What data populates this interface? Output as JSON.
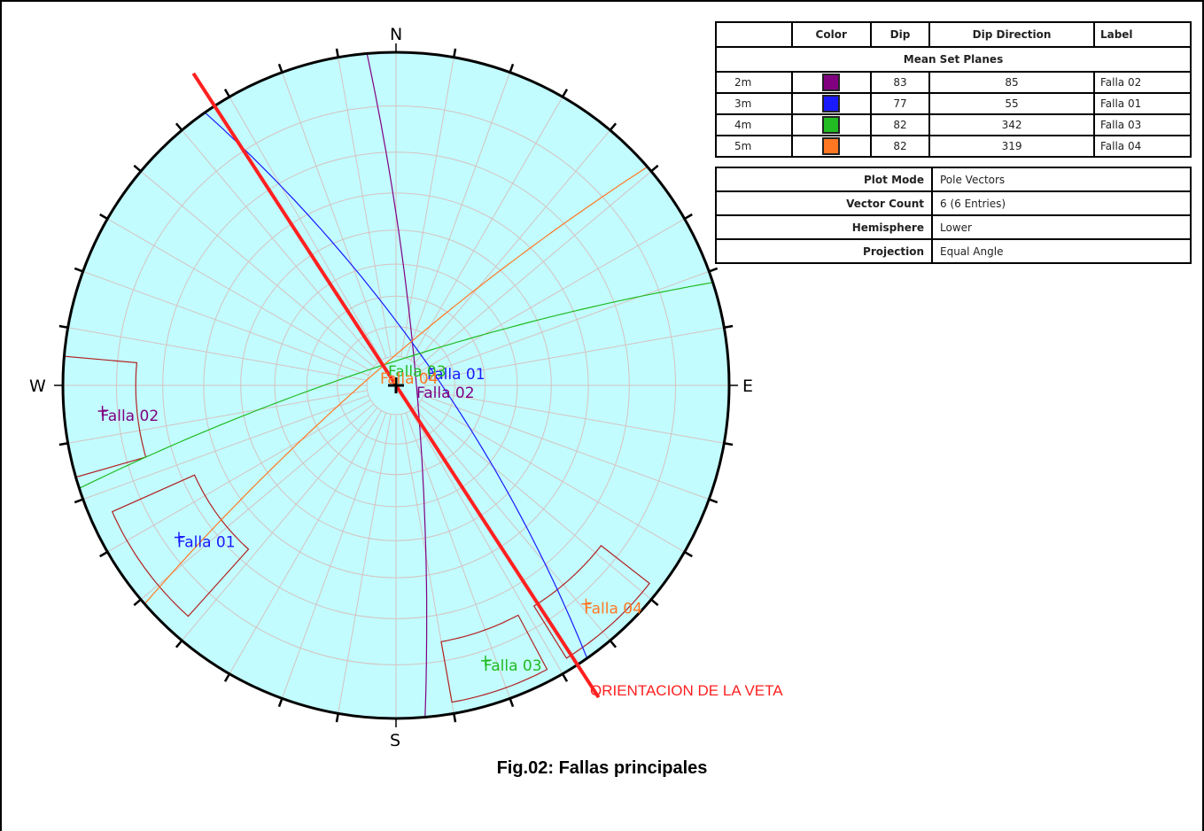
{
  "net": {
    "compass": {
      "n": "N",
      "s": "S",
      "e": "E",
      "w": "W"
    },
    "poles": [
      {
        "label": "Falla 01",
        "color": "#1a1aff",
        "trend": 235,
        "plunge": 13
      },
      {
        "label": "Falla 02",
        "color": "#800080",
        "trend": 265,
        "plunge": 7
      },
      {
        "label": "Falla 03",
        "color": "#22bb22",
        "trend": 162,
        "plunge": 8
      },
      {
        "label": "Falla 04",
        "color": "#ff7722",
        "trend": 139,
        "plunge": 8
      }
    ],
    "mean_set_labels": [
      {
        "label": "Falla 01",
        "color": "#1a1aff"
      },
      {
        "label": "Falla 02",
        "color": "#800080"
      },
      {
        "label": "Falla 03",
        "color": "#22bb22"
      },
      {
        "label": "Falla 04",
        "color": "#ff7722"
      }
    ],
    "planes": [
      {
        "label": "Falla 02",
        "color": "#800080",
        "dip": 83,
        "dip_direction": 85
      },
      {
        "label": "Falla 01",
        "color": "#1a1aff",
        "dip": 77,
        "dip_direction": 55
      },
      {
        "label": "Falla 03",
        "color": "#22bb22",
        "dip": 82,
        "dip_direction": 342
      },
      {
        "label": "Falla 04",
        "color": "#ff7722",
        "dip": 82,
        "dip_direction": 319
      }
    ],
    "vein_trend": 327,
    "vein_color": "#ff2020"
  },
  "vein_label": "ORIENTACION DE LA VETA",
  "caption": "Fig.02: Fallas principales",
  "mean_set": {
    "headers": {
      "color": "Color",
      "dip": "Dip",
      "dip_direction": "Dip Direction",
      "label": "Label"
    },
    "section_title": "Mean Set Planes",
    "rows": [
      {
        "id": "2m",
        "color": "#800080",
        "dip": "83",
        "dip_direction": "85",
        "label": "Falla 02"
      },
      {
        "id": "3m",
        "color": "#1a1aff",
        "dip": "77",
        "dip_direction": "55",
        "label": "Falla 01"
      },
      {
        "id": "4m",
        "color": "#22bb22",
        "dip": "82",
        "dip_direction": "342",
        "label": "Falla 03"
      },
      {
        "id": "5m",
        "color": "#ff7722",
        "dip": "82",
        "dip_direction": "319",
        "label": "Falla 04"
      }
    ]
  },
  "properties": [
    {
      "key": "Plot Mode",
      "value": "Pole Vectors"
    },
    {
      "key": "Vector Count",
      "value": "6 (6 Entries)"
    },
    {
      "key": "Hemisphere",
      "value": "Lower"
    },
    {
      "key": "Projection",
      "value": "Equal Angle"
    }
  ]
}
